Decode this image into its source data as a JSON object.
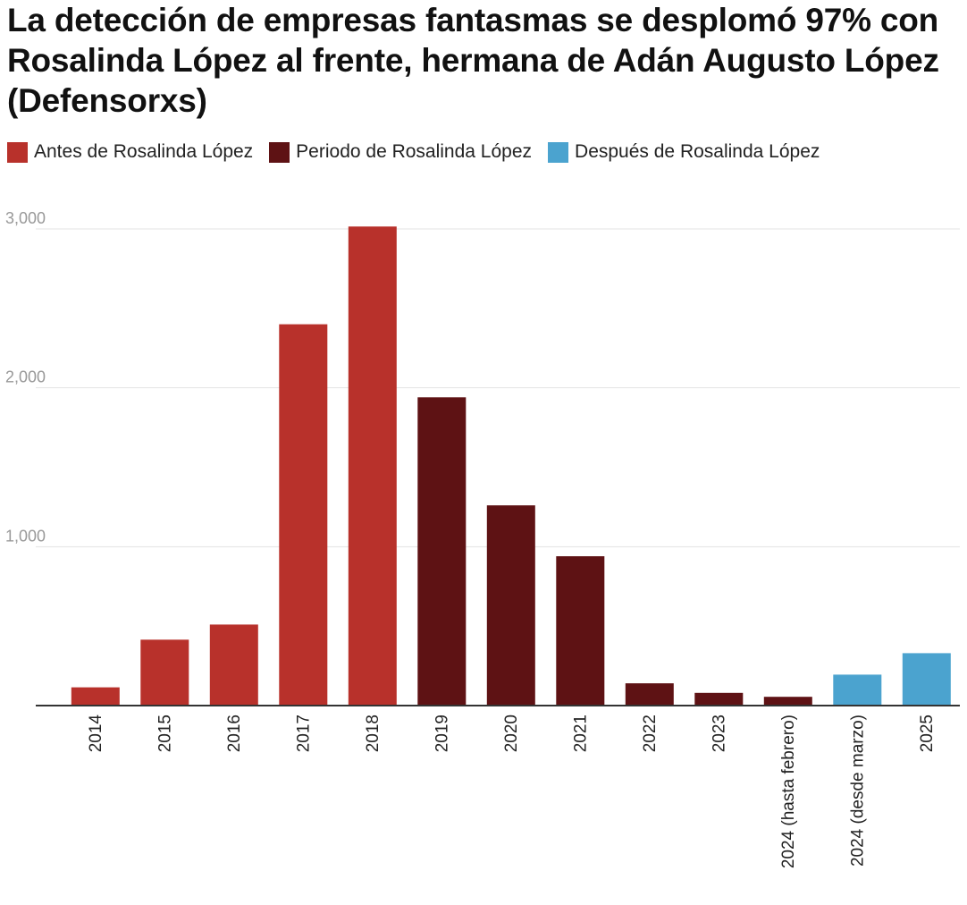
{
  "chart_data": {
    "type": "bar",
    "title": "La detección de empresas fantasmas se desplomó 97% con Rosalinda López al frente, hermana de Adán Augusto López (Defensorxs)",
    "legend": [
      {
        "label": "Antes de Rosalinda López",
        "color": "#b8312b"
      },
      {
        "label": "Periodo de Rosalinda López",
        "color": "#5e1214"
      },
      {
        "label": "Después de Rosalinda López",
        "color": "#4ba3cf"
      }
    ],
    "categories": [
      "2014",
      "2015",
      "2016",
      "2017",
      "2018",
      "2019",
      "2020",
      "2021",
      "2022",
      "2023",
      "2024 (hasta febrero)",
      "2024 (desde marzo)",
      "2025"
    ],
    "values": [
      115,
      415,
      510,
      2400,
      3015,
      1940,
      1260,
      940,
      140,
      80,
      55,
      195,
      330
    ],
    "groups": [
      0,
      0,
      0,
      0,
      0,
      1,
      1,
      1,
      1,
      1,
      1,
      2,
      2
    ],
    "yticks": [
      1000,
      2000,
      3000
    ],
    "ytick_labels": [
      "1,000",
      "2,000",
      "3,000"
    ],
    "ylim": [
      0,
      3000
    ],
    "grid": true,
    "legend_position": "top-left"
  }
}
